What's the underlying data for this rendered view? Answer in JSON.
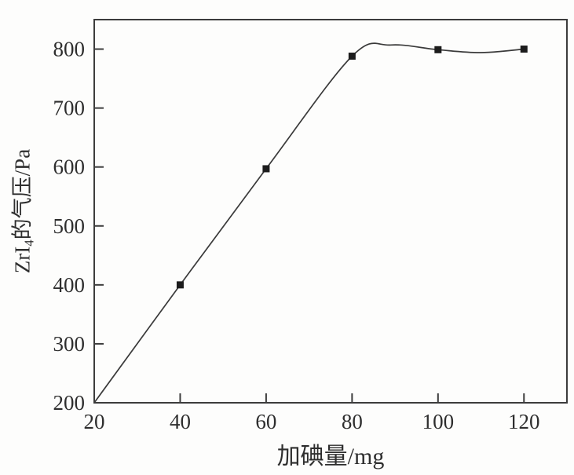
{
  "chart_data": {
    "type": "line",
    "title": "",
    "xlabel": "加碘量/mg",
    "ylabel": "ZrI4的气压/Pa",
    "ylabel_parts": {
      "prefix": "ZrI",
      "subscript": "4",
      "suffix": "的气压/Pa"
    },
    "x": [
      40,
      60,
      80,
      100,
      120
    ],
    "values": [
      400,
      597,
      788,
      799,
      800
    ],
    "line_start": [
      20,
      200
    ],
    "curve_trace": [
      [
        20,
        200
      ],
      [
        40,
        400
      ],
      [
        60,
        597
      ],
      [
        80,
        788
      ],
      [
        89,
        807
      ],
      [
        100,
        799
      ],
      [
        110,
        794
      ],
      [
        120,
        800
      ]
    ],
    "xticks": [
      20,
      40,
      60,
      80,
      100,
      120
    ],
    "yticks": [
      200,
      300,
      400,
      500,
      600,
      700,
      800
    ],
    "xlim": [
      20,
      130
    ],
    "ylim": [
      200,
      850
    ],
    "grid": false,
    "legend": null,
    "marker": "square",
    "marker_size": 9,
    "line_color": "#3a3a3a",
    "marker_color": "#1c1c1c",
    "axis_color": "#3c3c3c",
    "tick_label_color": "#2e2e2e",
    "tick_font_size": 27
  }
}
